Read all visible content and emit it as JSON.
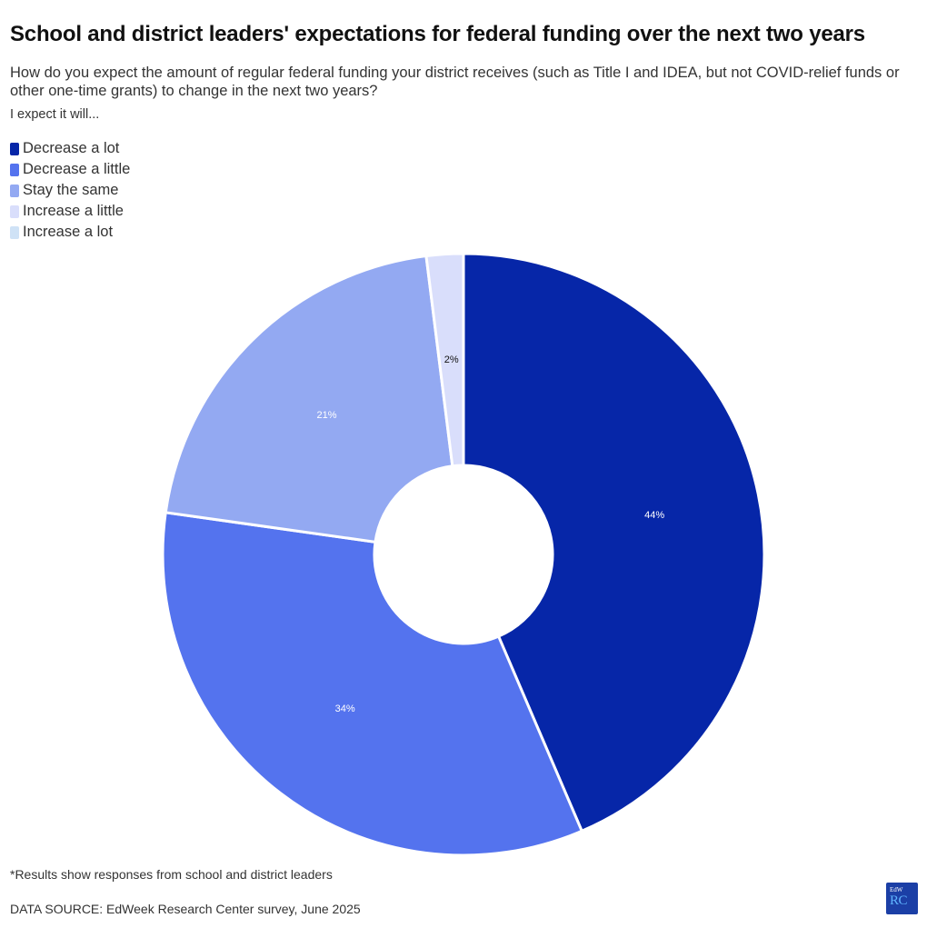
{
  "title": "School and district leaders' expectations for federal funding over the next two years",
  "subtitle": "How do you expect the amount of regular federal funding your district receives (such as Title I and IDEA, but not COVID-relief funds or other one-time grants) to change in the next two years?",
  "lead": "I expect it will...",
  "note": "*Results show responses from school and district leaders",
  "source": "DATA SOURCE: EdWeek Research Center survey, June 2025",
  "logo": {
    "top": "EdW",
    "main": "RC"
  },
  "chart_data": {
    "type": "pie",
    "donut": true,
    "legend_position": "top-left",
    "categories": [
      "Decrease a lot",
      "Decrease a little",
      "Stay the same",
      "Increase a little",
      "Increase a lot"
    ],
    "values": [
      44,
      34,
      21,
      2,
      0
    ],
    "labels": [
      "44%",
      "34%",
      "21%",
      "2%",
      ""
    ],
    "colors": [
      "#0626a8",
      "#5473ee",
      "#93a9f2",
      "#d9defb",
      "#cfe2f6"
    ],
    "label_colors": [
      "#ffffff",
      "#ffffff",
      "#ffffff",
      "#111111",
      "#111111"
    ]
  }
}
